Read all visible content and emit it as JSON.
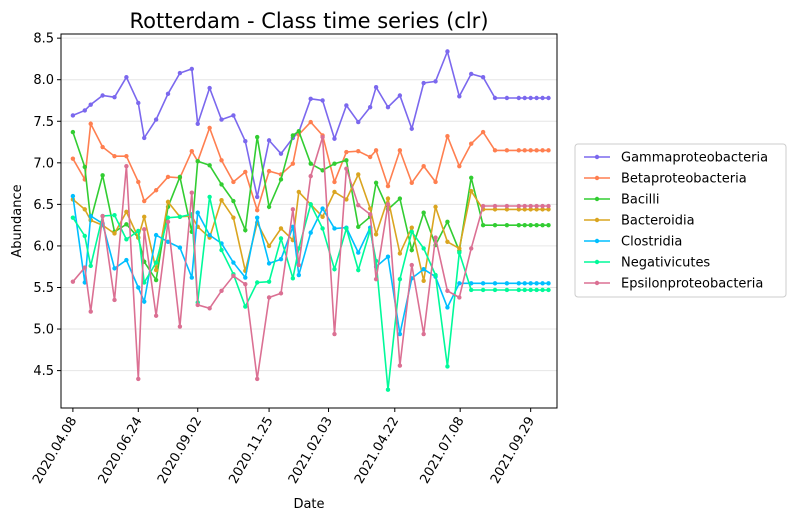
{
  "chart_data": {
    "type": "line",
    "title": "Rotterdam - Class time series (clr)",
    "xlabel": "Date",
    "ylabel": "Abundance",
    "ylim": [
      4.05,
      8.55
    ],
    "xlim": [
      "2020-03-25",
      "2021-10-30"
    ],
    "grid": "horizontal",
    "legend_position": "right",
    "x_ticks": [
      "2020.04.08",
      "2020.06.24",
      "2020.09.02",
      "2020.11.25",
      "2021.02.03",
      "2021.04.22",
      "2021.07.08",
      "2021.09.29"
    ],
    "y_ticks": [
      4.5,
      5.0,
      5.5,
      6.0,
      6.5,
      7.0,
      7.5,
      8.0,
      8.5
    ],
    "x": [
      "2020-04-08",
      "2020-04-22",
      "2020-04-29",
      "2020-05-13",
      "2020-05-27",
      "2020-06-10",
      "2020-06-24",
      "2020-07-01",
      "2020-07-15",
      "2020-07-29",
      "2020-08-12",
      "2020-08-26",
      "2020-09-02",
      "2020-09-16",
      "2020-09-30",
      "2020-10-14",
      "2020-10-28",
      "2020-11-11",
      "2020-11-25",
      "2020-12-09",
      "2020-12-23",
      "2020-12-30",
      "2021-01-13",
      "2021-01-27",
      "2021-02-10",
      "2021-02-24",
      "2021-03-10",
      "2021-03-24",
      "2021-03-31",
      "2021-04-14",
      "2021-04-28",
      "2021-05-12",
      "2021-05-26",
      "2021-06-09",
      "2021-06-23",
      "2021-07-07",
      "2021-07-21",
      "2021-08-04",
      "2021-08-18",
      "2021-09-01",
      "2021-09-15",
      "2021-09-22",
      "2021-09-29",
      "2021-10-06",
      "2021-10-13",
      "2021-10-20"
    ],
    "series": [
      {
        "name": "Gammaproteobacteria",
        "color": "#7b68ee",
        "values": [
          7.57,
          7.63,
          7.7,
          7.81,
          7.79,
          8.03,
          7.72,
          7.3,
          7.52,
          7.83,
          8.08,
          8.13,
          7.47,
          7.9,
          7.52,
          7.57,
          7.26,
          6.59,
          7.27,
          7.11,
          7.3,
          7.37,
          7.77,
          7.75,
          7.29,
          7.69,
          7.49,
          7.67,
          7.91,
          7.67,
          7.81,
          7.41,
          7.96,
          7.98,
          8.34,
          7.8,
          8.07,
          8.03,
          7.78,
          7.78,
          7.78,
          7.78,
          7.78,
          7.78,
          7.78,
          7.78
        ]
      },
      {
        "name": "Betaproteobacteria",
        "color": "#ff7f50",
        "values": [
          7.05,
          6.8,
          7.47,
          7.19,
          7.08,
          7.08,
          6.77,
          6.54,
          6.67,
          6.83,
          6.82,
          7.14,
          7.02,
          7.42,
          7.03,
          6.77,
          6.89,
          6.43,
          6.9,
          6.86,
          6.99,
          7.34,
          7.49,
          7.33,
          6.77,
          7.13,
          7.14,
          7.07,
          7.15,
          6.72,
          7.15,
          6.76,
          6.96,
          6.77,
          7.32,
          6.96,
          7.23,
          7.37,
          7.15,
          7.15,
          7.15,
          7.15,
          7.15,
          7.15,
          7.15,
          7.15
        ]
      },
      {
        "name": "Bacilli",
        "color": "#32cd32",
        "values": [
          7.37,
          6.95,
          6.31,
          6.85,
          6.17,
          6.26,
          6.1,
          5.81,
          5.59,
          6.47,
          6.83,
          6.17,
          7.02,
          6.97,
          6.74,
          6.54,
          6.19,
          7.31,
          6.47,
          6.8,
          7.33,
          7.38,
          6.99,
          6.91,
          6.99,
          7.03,
          6.23,
          6.35,
          6.76,
          6.44,
          6.57,
          5.95,
          6.4,
          6.01,
          6.29,
          5.94,
          6.82,
          6.25,
          6.25,
          6.25,
          6.25,
          6.25,
          6.25,
          6.25,
          6.25,
          6.25
        ]
      },
      {
        "name": "Bacteroidia",
        "color": "#daa520",
        "values": [
          6.56,
          6.44,
          6.31,
          6.25,
          6.15,
          6.41,
          6.1,
          6.35,
          5.71,
          6.53,
          6.35,
          6.36,
          6.23,
          6.1,
          6.55,
          6.34,
          5.7,
          6.28,
          6.0,
          6.21,
          6.07,
          6.65,
          6.5,
          6.35,
          6.65,
          6.56,
          6.86,
          6.45,
          6.14,
          6.57,
          5.91,
          6.22,
          5.58,
          6.47,
          6.05,
          5.97,
          6.66,
          6.44,
          6.44,
          6.44,
          6.44,
          6.44,
          6.44,
          6.44,
          6.44,
          6.44
        ]
      },
      {
        "name": "Clostridia",
        "color": "#00bfff",
        "values": [
          6.6,
          5.56,
          6.36,
          6.27,
          5.73,
          5.83,
          5.5,
          5.33,
          6.13,
          6.05,
          5.98,
          5.62,
          6.4,
          6.13,
          6.03,
          5.8,
          5.62,
          6.34,
          5.79,
          5.84,
          6.23,
          5.65,
          6.16,
          6.45,
          6.21,
          6.22,
          5.92,
          6.22,
          5.75,
          5.87,
          4.94,
          5.61,
          5.72,
          5.63,
          5.26,
          5.55,
          5.55,
          5.55,
          5.55,
          5.55,
          5.55,
          5.55,
          5.55,
          5.55,
          5.55,
          5.55
        ]
      },
      {
        "name": "Negativicutes",
        "color": "#00fa9a",
        "values": [
          6.34,
          6.12,
          5.76,
          6.36,
          6.37,
          6.08,
          6.18,
          5.56,
          5.8,
          6.34,
          6.35,
          6.38,
          5.32,
          6.59,
          5.95,
          5.66,
          5.27,
          5.56,
          5.57,
          6.09,
          5.61,
          5.97,
          6.5,
          6.21,
          5.72,
          6.21,
          5.71,
          6.19,
          5.82,
          4.27,
          5.6,
          6.17,
          5.97,
          5.65,
          4.55,
          5.92,
          5.47,
          5.47,
          5.47,
          5.47,
          5.47,
          5.47,
          5.47,
          5.47,
          5.47,
          5.47
        ]
      },
      {
        "name": "Epsilonproteobacteria",
        "color": "#db7093",
        "values": [
          5.57,
          5.74,
          5.21,
          6.36,
          5.35,
          6.96,
          4.4,
          6.2,
          5.16,
          6.29,
          5.03,
          6.64,
          5.29,
          5.25,
          5.46,
          5.64,
          5.54,
          4.4,
          5.38,
          5.43,
          6.44,
          5.77,
          6.84,
          7.31,
          4.94,
          6.93,
          6.49,
          6.38,
          5.6,
          6.5,
          4.56,
          5.77,
          4.94,
          6.1,
          5.46,
          5.38,
          5.97,
          6.48,
          6.48,
          6.48,
          6.48,
          6.48,
          6.48,
          6.48,
          6.48,
          6.48
        ]
      }
    ]
  }
}
